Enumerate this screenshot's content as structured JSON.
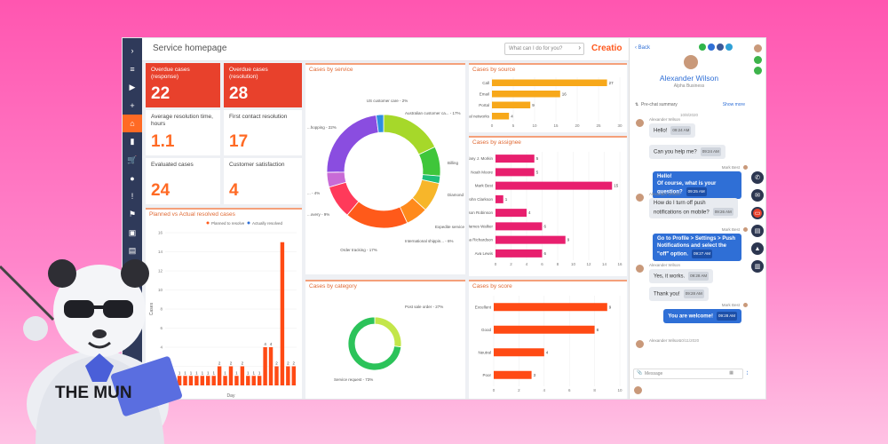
{
  "app": {
    "title": "Service homepage",
    "search_placeholder": "What can I do for you?",
    "logo": "Creatio"
  },
  "nav": {
    "items": [
      {
        "icon": "chevron-right-icon",
        "glyph": "›"
      },
      {
        "icon": "menu-icon",
        "glyph": "≡"
      },
      {
        "icon": "play-icon",
        "glyph": "▶"
      },
      {
        "icon": "add-icon",
        "glyph": "+"
      },
      {
        "icon": "home-icon",
        "glyph": "⌂",
        "active": true
      },
      {
        "icon": "chart-icon",
        "glyph": "▮"
      },
      {
        "icon": "cart-icon",
        "glyph": "🛒"
      },
      {
        "icon": "user-icon",
        "glyph": "●"
      },
      {
        "icon": "alert-icon",
        "glyph": "!"
      },
      {
        "icon": "flag-icon",
        "glyph": "⚑"
      },
      {
        "icon": "cases-icon",
        "glyph": "▣"
      },
      {
        "icon": "document-icon",
        "glyph": "▤"
      }
    ]
  },
  "tiles": [
    {
      "label": "Overdue cases (response)",
      "value": "22",
      "style": "red"
    },
    {
      "label": "Overdue cases (resolution)",
      "value": "28",
      "style": "red"
    },
    {
      "label": "Average resolution time, hours",
      "value": "1.1",
      "style": "white"
    },
    {
      "label": "First contact resolution",
      "value": "17",
      "style": "white"
    },
    {
      "label": "Evaluated cases",
      "value": "24",
      "style": "white"
    },
    {
      "label": "Customer satisfaction",
      "value": "4",
      "style": "white"
    }
  ],
  "panels": {
    "planned": "Planned vs Actual resolved cases",
    "service": "Cases by service",
    "source": "Cases by source",
    "assignee": "Cases by assignee",
    "category": "Cases by category",
    "score": "Cases by score"
  },
  "chart_data": [
    {
      "type": "bar",
      "title": "Planned vs Actual resolved cases",
      "legend": [
        "Planned to resolve",
        "Actually resolved"
      ],
      "ylabel": "Cases",
      "xlabel": "Day",
      "ylim": [
        0,
        16
      ],
      "yticks": [
        0,
        2,
        4,
        6,
        8,
        10,
        12,
        14,
        16
      ],
      "values": [
        1,
        1,
        1,
        1,
        1,
        1,
        1,
        1,
        1,
        2,
        1,
        2,
        1,
        2,
        1,
        1,
        1,
        4,
        4,
        2,
        15,
        2,
        2
      ],
      "value_labels": [
        "1",
        "1",
        "1",
        "1",
        "1",
        "1",
        "1",
        "1",
        "1",
        "2",
        "1",
        "2",
        "1",
        "2",
        "1",
        "1",
        "1",
        "4",
        "4",
        "2",
        "",
        "2",
        "2"
      ]
    },
    {
      "type": "pie",
      "title": "Cases by service",
      "labels": [
        "Australian customer ca... - 17%",
        "Billing",
        "Diamond",
        "Expedite service & ship... - 8%",
        "International shippin... - 6%",
        "Order tracking - 17%",
        "...overy - 9%",
        "... - 4%",
        "...hopping - 22%",
        "US customer care - 2%"
      ],
      "values": [
        17,
        8,
        2,
        8,
        6,
        17,
        9,
        4,
        22,
        2
      ],
      "colors": [
        "#a6d82a",
        "#3fc63a",
        "#1fbf7a",
        "#f7b62a",
        "#ff8a1c",
        "#ff5a1a",
        "#ff3a5a",
        "#c86bd6",
        "#8a4de0",
        "#2f8ee0"
      ]
    },
    {
      "type": "bar",
      "orientation": "horizontal",
      "title": "Cases by source",
      "categories": [
        "Call",
        "Email",
        "Portal",
        "Social networks"
      ],
      "values": [
        27,
        16,
        9,
        4
      ],
      "xticks": [
        0,
        5,
        10,
        15,
        20,
        25,
        30
      ]
    },
    {
      "type": "bar",
      "orientation": "horizontal",
      "title": "Cases by assignee",
      "categories": [
        "Tiffany J. Morkin",
        "Noah Moore",
        "Mark Best",
        "John Clarkson",
        "Jason Robinson",
        "James Walker",
        "Emma Richardson",
        "Ava Lewis"
      ],
      "values": [
        5,
        5,
        15,
        1,
        4,
        6,
        9,
        6
      ],
      "xticks": [
        0,
        2,
        4,
        6,
        8,
        10,
        12,
        14,
        16
      ]
    },
    {
      "type": "pie",
      "title": "Cases by category",
      "labels": [
        "Post sale order - 27%",
        "Service request - 73%"
      ],
      "values": [
        27,
        73
      ],
      "colors": [
        "#c3e64a",
        "#2cc35a"
      ]
    },
    {
      "type": "bar",
      "orientation": "horizontal",
      "title": "Cases by score",
      "categories": [
        "Excellent",
        "Good",
        "Neutral",
        "Poor"
      ],
      "values": [
        9,
        8,
        4,
        3
      ],
      "xticks": [
        0,
        2,
        4,
        6,
        8,
        10
      ]
    }
  ],
  "contact": {
    "back": "Back",
    "name": "Alexander Wilson",
    "company": "Alpha Business",
    "summary": "Pre-chat summary",
    "show_more": "Show more",
    "date1": "10/8/2020",
    "date2": "10/11/2020",
    "message_placeholder": "Message"
  },
  "messages": [
    {
      "dir": "in",
      "sender": "Alexander Wilson",
      "text": "Hello!",
      "time": "09:24 AM"
    },
    {
      "dir": "in",
      "text": "Can you help me?",
      "time": "09:24 AM"
    },
    {
      "dir": "out",
      "sender": "Mark Best",
      "text": "Hello!\nOf course, what is your question?",
      "time": "09:25 AM"
    },
    {
      "dir": "in",
      "sender": "Alexander Wilson",
      "text": "How do I turn off push notifications on mobile?",
      "time": "09:26 AM"
    },
    {
      "dir": "out",
      "sender": "Mark Best",
      "text": "Go to Profile > Settings > Push Notifications and select the \"off\" option.",
      "time": "09:27 AM"
    },
    {
      "dir": "in",
      "sender": "Alexander Wilson",
      "text": "Yes, it works.",
      "time": "09:28 AM"
    },
    {
      "dir": "in",
      "text": "Thank you!",
      "time": "09:28 AM"
    },
    {
      "dir": "out",
      "sender": "Mark Best",
      "text": "You are welcome!",
      "time": "09:28 AM"
    },
    {
      "dir": "in",
      "sender": "Alexander Wilson",
      "text": "",
      "time": ""
    }
  ],
  "mascot": {
    "text": "THE MUN"
  }
}
